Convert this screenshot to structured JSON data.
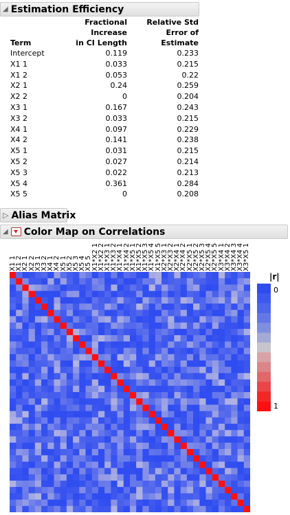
{
  "estimation": {
    "title": "Estimation Efficiency",
    "columns": [
      "Term",
      "Fractional Increase in CI Length",
      "Relative Std Error of Estimate"
    ],
    "col1_line1": "Fractional Increase",
    "col1_line2": "in CI Length",
    "col2_line1": "Relative Std",
    "col2_line2": "Error of Estimate",
    "rows": [
      {
        "term": "Intercept",
        "frac": "0.119",
        "rse": "0.233"
      },
      {
        "term": "X1 1",
        "frac": "0.033",
        "rse": "0.215"
      },
      {
        "term": "X1 2",
        "frac": "0.053",
        "rse": "0.22"
      },
      {
        "term": "X2 1",
        "frac": "0.24",
        "rse": "0.259"
      },
      {
        "term": "X2 2",
        "frac": "0",
        "rse": "0.204"
      },
      {
        "term": "X3 1",
        "frac": "0.167",
        "rse": "0.243"
      },
      {
        "term": "X3 2",
        "frac": "0.033",
        "rse": "0.215"
      },
      {
        "term": "X4 1",
        "frac": "0.097",
        "rse": "0.229"
      },
      {
        "term": "X4 2",
        "frac": "0.141",
        "rse": "0.238"
      },
      {
        "term": "X5 1",
        "frac": "0.031",
        "rse": "0.215"
      },
      {
        "term": "X5 2",
        "frac": "0.027",
        "rse": "0.214"
      },
      {
        "term": "X5 3",
        "frac": "0.022",
        "rse": "0.213"
      },
      {
        "term": "X5 4",
        "frac": "0.361",
        "rse": "0.284"
      },
      {
        "term": "X5 5",
        "frac": "0",
        "rse": "0.208"
      }
    ]
  },
  "alias": {
    "title": "Alias Matrix"
  },
  "colormap": {
    "title": "Color Map on Correlations",
    "labels": [
      "X1 1",
      "X1 2",
      "X2 1",
      "X2 2",
      "X3 1",
      "X3 2",
      "X4 1",
      "X4 2",
      "X5 1",
      "X5 2",
      "X5 3",
      "X5 4",
      "X5 5",
      "X1*X2 1",
      "X1*X2 2",
      "X1*X3 1",
      "X1*X3 2",
      "X1*X4 1",
      "X1*X4 2",
      "X1*X5 1",
      "X1*X5 2",
      "X1*X5 3",
      "X1*X5 4",
      "X1*X5 5",
      "X2*X3 1",
      "X2*X3 2",
      "X2*X4 1",
      "X2*X4 2",
      "X2*X5 1",
      "X2*X5 2",
      "X2*X5 3",
      "X2*X5 4",
      "X2*X5 5",
      "X3*X4 1",
      "X3*X4 2",
      "X3*X4 3",
      "X3*X4 4",
      "X3*X5 1"
    ],
    "legend_title": "|r|",
    "legend_min": "0",
    "legend_max": "1",
    "colors": {
      "low": "#2f4cf0",
      "high": "#ff1010"
    }
  }
}
